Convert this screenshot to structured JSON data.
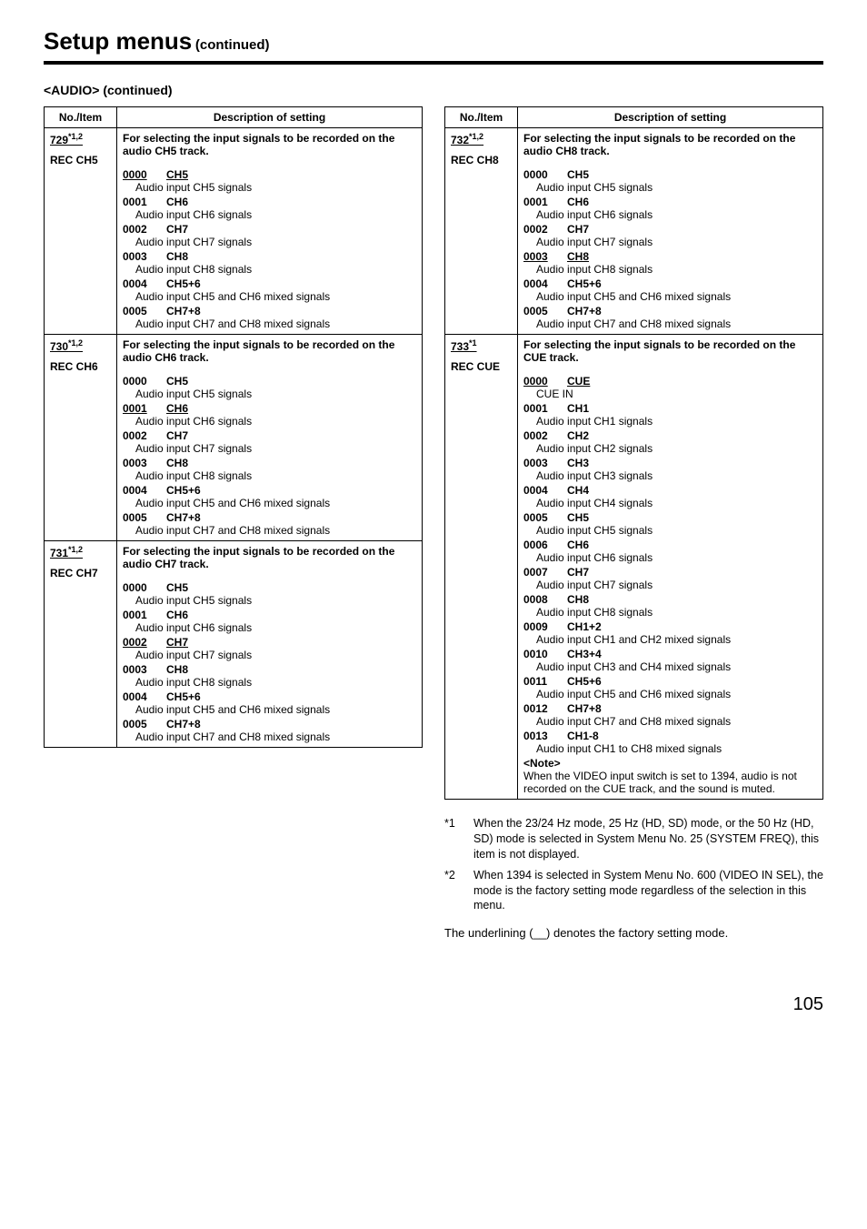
{
  "header": {
    "title": "Setup menus",
    "suffix": "(continued)"
  },
  "section": "<AUDIO>  (continued)",
  "table_headers": {
    "no_item": "No./Item",
    "description": "Description of setting"
  },
  "left_items": [
    {
      "no": "729",
      "sup": "*1,2",
      "name": "REC CH5",
      "head": "For selecting the input signals to be recorded on the audio CH5 track.",
      "options": [
        {
          "code": "0000",
          "label": "CH5",
          "default": true,
          "detail": "Audio input CH5 signals"
        },
        {
          "code": "0001",
          "label": "CH6",
          "detail": "Audio input CH6 signals"
        },
        {
          "code": "0002",
          "label": "CH7",
          "detail": "Audio input CH7 signals"
        },
        {
          "code": "0003",
          "label": "CH8",
          "detail": "Audio input CH8 signals"
        },
        {
          "code": "0004",
          "label": "CH5+6",
          "detail": "Audio input CH5 and CH6 mixed signals"
        },
        {
          "code": "0005",
          "label": "CH7+8",
          "detail": "Audio input CH7 and CH8 mixed signals"
        }
      ]
    },
    {
      "no": "730",
      "sup": "*1,2",
      "name": "REC CH6",
      "head": "For selecting the input signals to be recorded on the audio CH6 track.",
      "options": [
        {
          "code": "0000",
          "label": "CH5",
          "detail": "Audio input CH5 signals"
        },
        {
          "code": "0001",
          "label": "CH6",
          "default": true,
          "detail": "Audio input CH6 signals"
        },
        {
          "code": "0002",
          "label": "CH7",
          "detail": "Audio input CH7 signals"
        },
        {
          "code": "0003",
          "label": "CH8",
          "detail": "Audio input CH8 signals"
        },
        {
          "code": "0004",
          "label": "CH5+6",
          "detail": "Audio input CH5 and CH6 mixed signals"
        },
        {
          "code": "0005",
          "label": "CH7+8",
          "detail": "Audio input CH7 and CH8 mixed signals"
        }
      ]
    },
    {
      "no": "731",
      "sup": "*1,2",
      "name": "REC CH7",
      "head": "For selecting the input signals to be recorded on the audio CH7 track.",
      "options": [
        {
          "code": "0000",
          "label": "CH5",
          "detail": "Audio input CH5 signals"
        },
        {
          "code": "0001",
          "label": "CH6",
          "detail": "Audio input CH6 signals"
        },
        {
          "code": "0002",
          "label": "CH7",
          "default": true,
          "detail": "Audio input CH7 signals"
        },
        {
          "code": "0003",
          "label": "CH8",
          "detail": "Audio input CH8 signals"
        },
        {
          "code": "0004",
          "label": "CH5+6",
          "detail": "Audio input CH5 and CH6 mixed signals"
        },
        {
          "code": "0005",
          "label": "CH7+8",
          "detail": "Audio input CH7 and CH8 mixed signals"
        }
      ]
    }
  ],
  "right_items": [
    {
      "no": "732",
      "sup": "*1,2",
      "name": "REC CH8",
      "head": "For selecting the input signals to be recorded on the audio CH8 track.",
      "options": [
        {
          "code": "0000",
          "label": "CH5",
          "detail": "Audio input CH5 signals"
        },
        {
          "code": "0001",
          "label": "CH6",
          "detail": "Audio input CH6 signals"
        },
        {
          "code": "0002",
          "label": "CH7",
          "detail": "Audio input CH7 signals"
        },
        {
          "code": "0003",
          "label": "CH8",
          "default": true,
          "detail": "Audio input CH8 signals"
        },
        {
          "code": "0004",
          "label": "CH5+6",
          "detail": "Audio input CH5 and CH6 mixed signals"
        },
        {
          "code": "0005",
          "label": "CH7+8",
          "detail": "Audio input CH7 and CH8 mixed signals"
        }
      ]
    },
    {
      "no": "733",
      "sup": "*1",
      "name": "REC CUE",
      "head": "For selecting the input signals to be recorded on the CUE track.",
      "options": [
        {
          "code": "0000",
          "label": "CUE",
          "default": true,
          "detail": "CUE IN"
        },
        {
          "code": "0001",
          "label": "CH1",
          "detail": "Audio input CH1 signals"
        },
        {
          "code": "0002",
          "label": "CH2",
          "detail": "Audio input CH2 signals"
        },
        {
          "code": "0003",
          "label": "CH3",
          "detail": "Audio input CH3 signals"
        },
        {
          "code": "0004",
          "label": "CH4",
          "detail": "Audio input CH4 signals"
        },
        {
          "code": "0005",
          "label": "CH5",
          "detail": "Audio input CH5 signals"
        },
        {
          "code": "0006",
          "label": "CH6",
          "detail": "Audio input CH6 signals"
        },
        {
          "code": "0007",
          "label": "CH7",
          "detail": "Audio input CH7 signals"
        },
        {
          "code": "0008",
          "label": "CH8",
          "detail": "Audio input CH8 signals"
        },
        {
          "code": "0009",
          "label": "CH1+2",
          "detail": "Audio input CH1 and CH2 mixed signals"
        },
        {
          "code": "0010",
          "label": "CH3+4",
          "detail": "Audio input CH3 and CH4 mixed signals"
        },
        {
          "code": "0011",
          "label": "CH5+6",
          "detail": "Audio input CH5 and CH6 mixed signals"
        },
        {
          "code": "0012",
          "label": "CH7+8",
          "detail": "Audio input CH7 and CH8 mixed signals"
        },
        {
          "code": "0013",
          "label": "CH1-8",
          "detail": "Audio input CH1 to CH8 mixed signals"
        }
      ],
      "note_label": "<Note>",
      "note": "When the VIDEO input switch is set to 1394, audio is not recorded on the CUE track, and the sound is muted."
    }
  ],
  "footnotes": [
    {
      "mark": "*1",
      "text": "When the 23/24 Hz mode, 25 Hz (HD, SD) mode, or the 50 Hz (HD, SD) mode is selected in System Menu No. 25 (SYSTEM FREQ), this item is not displayed."
    },
    {
      "mark": "*2",
      "text": "When 1394 is selected in System Menu No. 600 (VIDEO IN SEL), the mode is the factory setting mode regardless of the selection in this menu."
    }
  ],
  "underline_note": "The underlining (__) denotes the factory setting mode.",
  "page_number": "105"
}
